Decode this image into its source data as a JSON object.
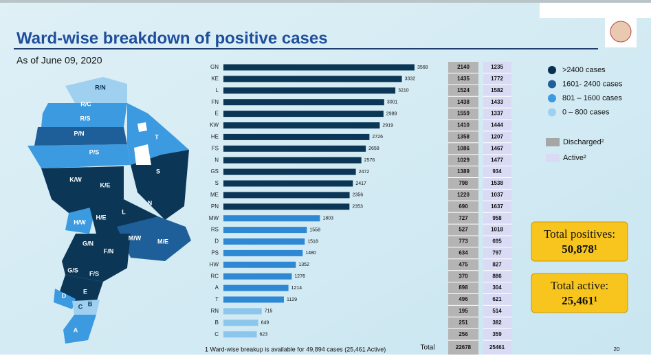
{
  "title": "Ward-wise breakdown of positive cases",
  "subtitle": "As of June 09, 2020",
  "chart_data": {
    "type": "bar",
    "categories": [
      "GN",
      "KE",
      "L",
      "FN",
      "E",
      "KW",
      "HE",
      "FS",
      "N",
      "GS",
      "S",
      "ME",
      "PN",
      "MW",
      "RS",
      "D",
      "PS",
      "HW",
      "RC",
      "A",
      "T",
      "RN",
      "B",
      "C"
    ],
    "values": [
      3568,
      3332,
      3210,
      3001,
      2989,
      2919,
      2726,
      2658,
      2576,
      2472,
      2417,
      2356,
      2353,
      1803,
      1558,
      1518,
      1480,
      1352,
      1276,
      1214,
      1129,
      715,
      649,
      623
    ],
    "colors": [
      "#0b3656",
      "#0b3656",
      "#0b3656",
      "#0b3656",
      "#0b3656",
      "#0b3656",
      "#0b3656",
      "#0b3656",
      "#0b3656",
      "#0b3656",
      "#0b3656",
      "#0b3656",
      "#0b3656",
      "#2f88d4",
      "#2f88d4",
      "#2f88d4",
      "#2f88d4",
      "#2f88d4",
      "#2f88d4",
      "#2f88d4",
      "#2f88d4",
      "#8cc6ec",
      "#8cc6ec",
      "#8cc6ec"
    ],
    "discharged": [
      2140,
      1435,
      1524,
      1438,
      1559,
      1410,
      1358,
      1086,
      1029,
      1389,
      798,
      1220,
      690,
      727,
      527,
      773,
      634,
      475,
      370,
      898,
      496,
      195,
      251,
      256
    ],
    "active": [
      1235,
      1772,
      1582,
      1433,
      1337,
      1444,
      1207,
      1467,
      1477,
      934,
      1538,
      1037,
      1637,
      958,
      1018,
      695,
      797,
      827,
      886,
      304,
      621,
      514,
      382,
      359
    ],
    "total_label": "Total",
    "discharged_total": 22678,
    "active_total": 25461
  },
  "map_legend": [
    {
      "label": ">2400 cases",
      "color": "#0b2f4f"
    },
    {
      "label": "1601- 2400 cases",
      "color": "#1f5f99"
    },
    {
      "label": "801 – 1600 cases",
      "color": "#3b9ae0"
    },
    {
      "label": "0 – 800 cases",
      "color": "#9fd0f0"
    }
  ],
  "table_legend": [
    {
      "label": "Discharged²",
      "color": "#a6a6a6"
    },
    {
      "label": "Active²",
      "color": "#d9dbf5"
    }
  ],
  "totals": [
    {
      "label": "Total positives:",
      "value": "50,878¹"
    },
    {
      "label": "Total active:",
      "value": "25,461¹"
    }
  ],
  "map": {
    "wards": [
      "R/N",
      "R/C",
      "R/S",
      "P/N",
      "P/S",
      "T",
      "S",
      "K/W",
      "K/E",
      "N",
      "L",
      "H/W",
      "H/E",
      "G/N",
      "M/W",
      "M/E",
      "F/N",
      "G/S",
      "F/S",
      "E",
      "D",
      "C",
      "B",
      "A"
    ]
  },
  "footnote": "1 Ward-wise breakup is available for 49,894 cases (25,461 Active)",
  "page_number": "20"
}
